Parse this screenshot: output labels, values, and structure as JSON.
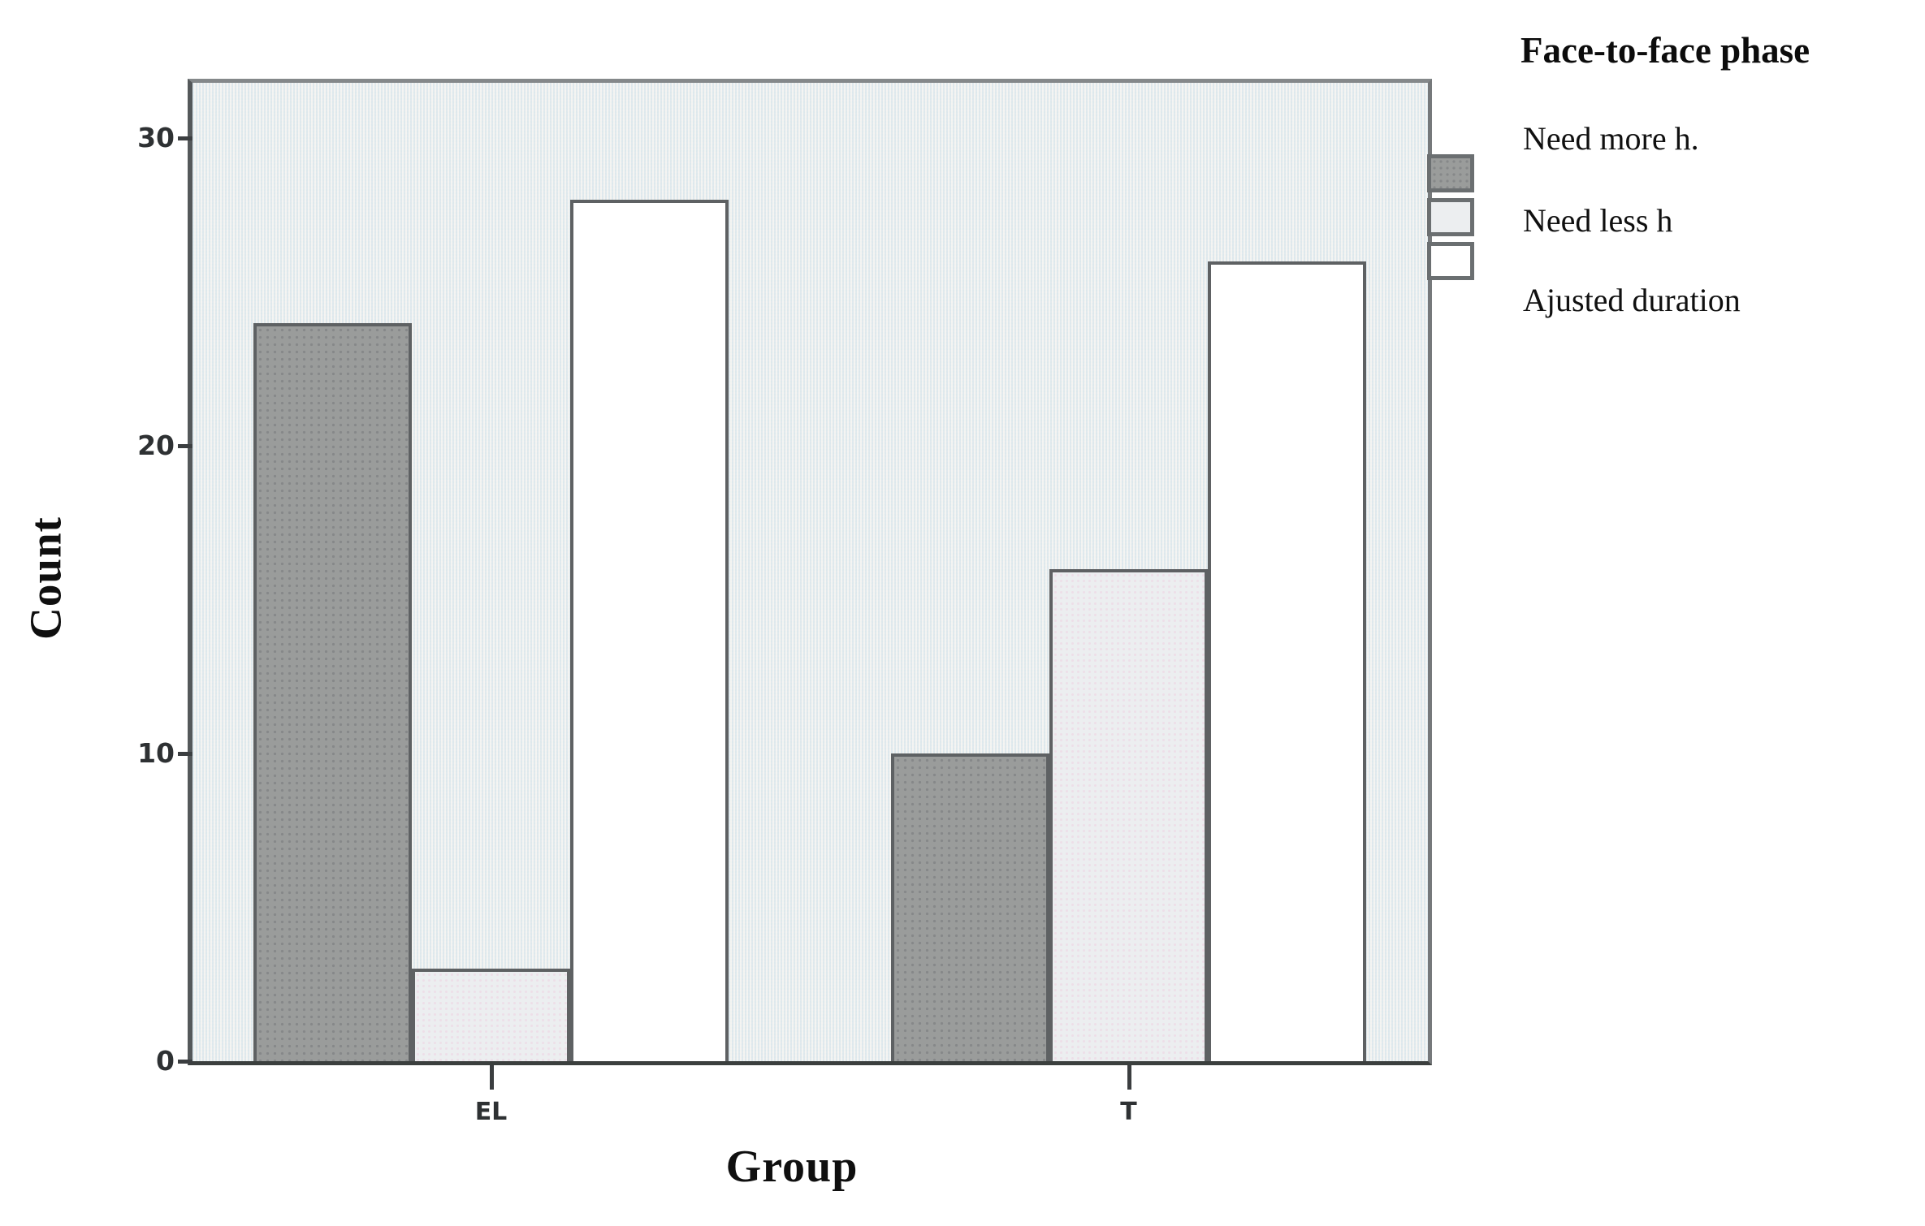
{
  "chart_data": {
    "type": "bar",
    "title": "",
    "categories": [
      "EL",
      "T"
    ],
    "series": [
      {
        "name": "Need more h.",
        "values": [
          24,
          10
        ]
      },
      {
        "name": "Need less h",
        "values": [
          3,
          16
        ]
      },
      {
        "name": "Ajusted duration",
        "values": [
          28,
          26
        ]
      }
    ],
    "xlabel": "Group",
    "ylabel": "Count",
    "yticks": [
      0,
      10,
      20,
      30
    ],
    "ylim": [
      0,
      31.8
    ],
    "legend_title": "Face-to-face phase",
    "legend_position": "outside-top-right",
    "grid": false
  },
  "colors": {
    "plot_background": "#e9eef0",
    "series_fills": [
      "#9a9c9b",
      "#eceef0",
      "#ffffff"
    ],
    "series_dark_dot": "#868889",
    "bar_border": "#5e6163",
    "axis_line": "#3b3e40",
    "tick_text": "#2e3133",
    "label_text": "#0f0f0f"
  }
}
